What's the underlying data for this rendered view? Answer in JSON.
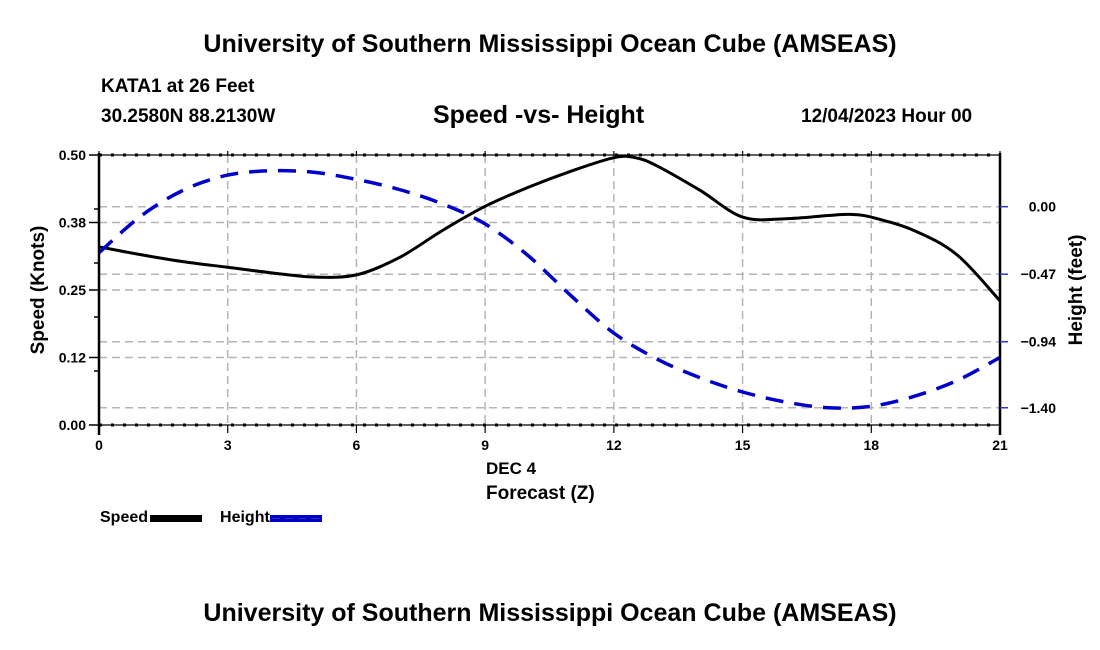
{
  "header": {
    "title_top": "University of Southern Mississippi Ocean Cube (AMSEAS)",
    "title_bottom": "University of Southern Mississippi Ocean Cube (AMSEAS)",
    "station": "KATA1 at 26 Feet",
    "coords": "30.2580N  88.2130W",
    "datetime": "12/04/2023 Hour 00"
  },
  "legend": {
    "items": [
      {
        "label": "Speed",
        "color": "#000000",
        "style": "solid"
      },
      {
        "label": "Height",
        "color": "#0000cc",
        "style": "dashed"
      }
    ]
  },
  "chart_data": {
    "type": "line",
    "title": "Speed -vs- Height",
    "xlabel": "Forecast (Z)",
    "xsublabel": "DEC 4",
    "ylabel": "Speed (Knots)",
    "y2label": "Height (feet)",
    "xlim": [
      0,
      21
    ],
    "ylim": [
      0,
      0.5
    ],
    "y2lim": [
      -1.52,
      0.36
    ],
    "x_ticks": [
      0,
      3,
      6,
      9,
      12,
      15,
      18,
      21
    ],
    "x_tick_labels": [
      "0",
      "3",
      "6",
      "9",
      "12",
      "15",
      "18",
      "21"
    ],
    "y_ticks": [
      0.0,
      0.125,
      0.25,
      0.375,
      0.5
    ],
    "y_tick_labels": [
      "0.00",
      "0.12",
      "0.25",
      "0.38",
      "0.50"
    ],
    "y_minor_ticks": [
      0.1,
      0.2,
      0.3,
      0.4
    ],
    "y2_ticks": [
      0.0,
      -0.47,
      -0.94,
      -1.4
    ],
    "y2_tick_labels": [
      "0.00",
      "−0.47",
      "−0.94",
      "−1.40"
    ],
    "grid": true,
    "legend_position": "bottom-left",
    "series": [
      {
        "name": "Speed",
        "axis": "left",
        "color": "#000000",
        "dash": "solid",
        "x": [
          0,
          1,
          2,
          3,
          4,
          5,
          6,
          7,
          8,
          9,
          10,
          11,
          12,
          12.5,
          13,
          14,
          15,
          16,
          17,
          17.5,
          18,
          19,
          20,
          21
        ],
        "values": [
          0.33,
          0.315,
          0.302,
          0.292,
          0.282,
          0.274,
          0.278,
          0.31,
          0.36,
          0.405,
          0.44,
          0.47,
          0.495,
          0.495,
          0.48,
          0.435,
          0.385,
          0.382,
          0.388,
          0.39,
          0.385,
          0.36,
          0.315,
          0.23
        ]
      },
      {
        "name": "Height",
        "axis": "right",
        "color": "#0000cc",
        "dash": "dashed",
        "x": [
          0,
          1,
          2,
          3,
          4,
          5,
          6,
          7,
          8,
          9,
          10,
          11,
          12,
          13,
          14,
          15,
          16,
          17,
          18,
          19,
          20,
          21
        ],
        "values": [
          -0.32,
          -0.06,
          0.12,
          0.22,
          0.25,
          0.24,
          0.19,
          0.12,
          0.02,
          -0.12,
          -0.34,
          -0.62,
          -0.88,
          -1.06,
          -1.19,
          -1.29,
          -1.36,
          -1.4,
          -1.39,
          -1.32,
          -1.21,
          -1.05
        ]
      }
    ]
  }
}
